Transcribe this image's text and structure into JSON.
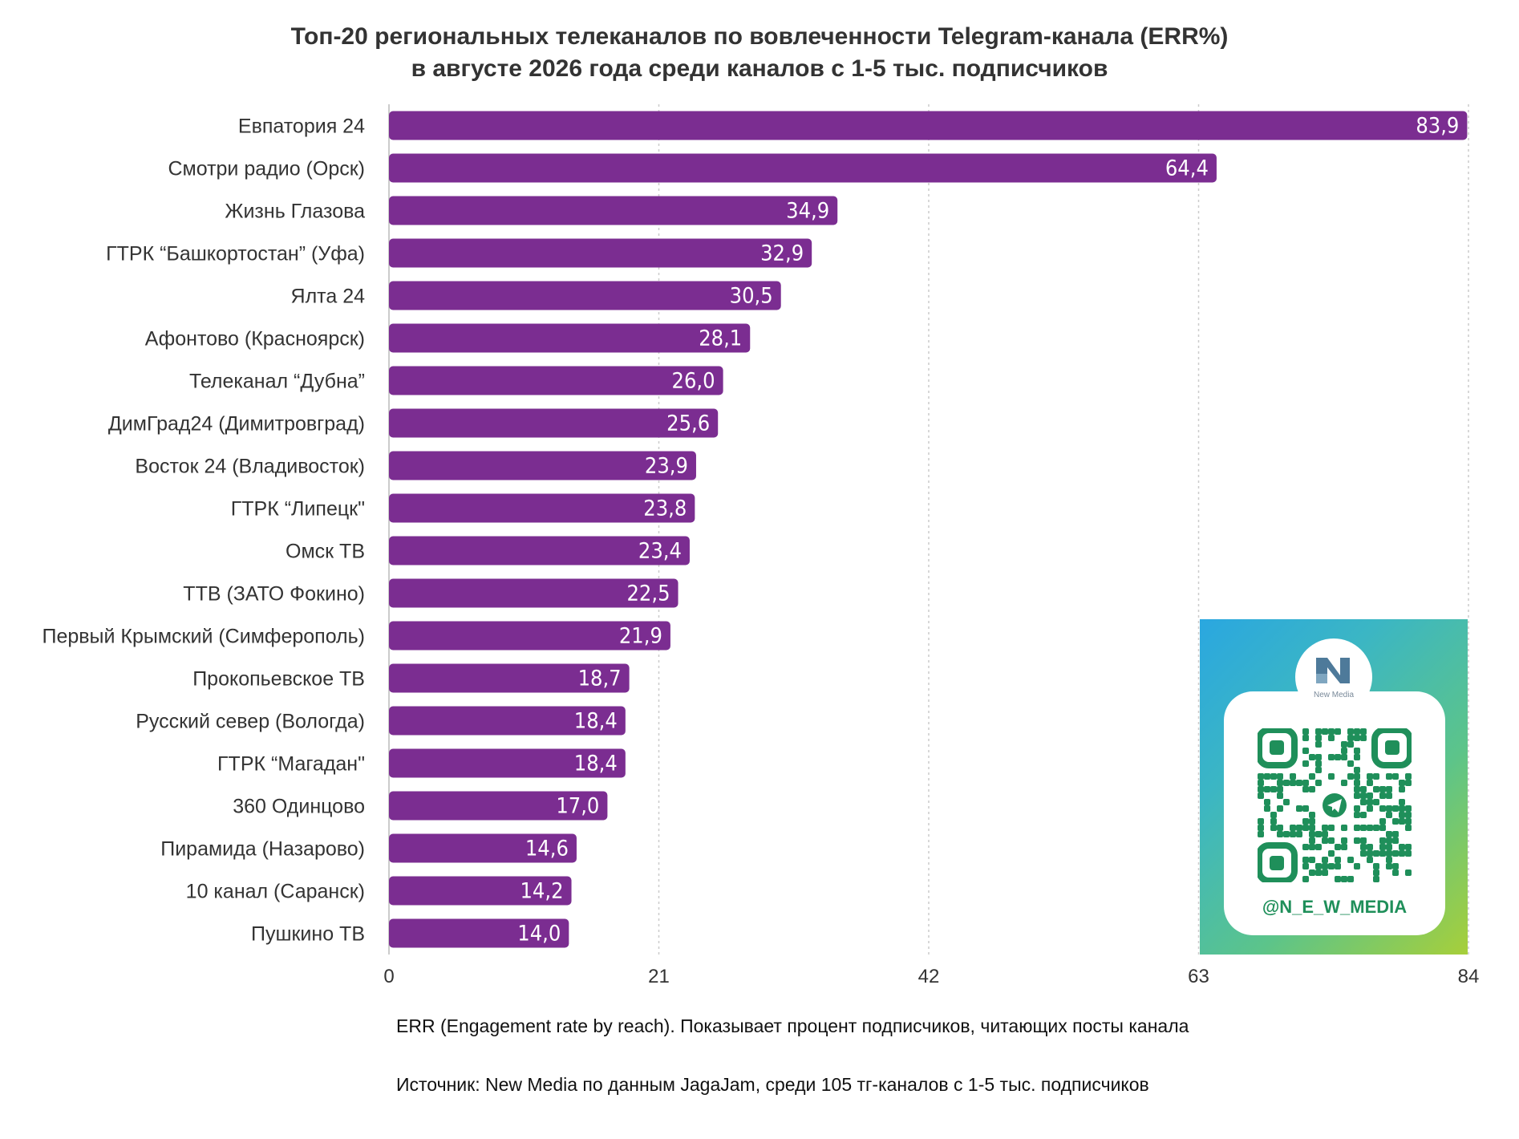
{
  "chart_data": {
    "type": "bar",
    "orientation": "horizontal",
    "title": "Топ-20 региональных телеканалов по вовлеченности Telegram-канала (ERR%)",
    "subtitle": "в августе 2026 года среди каналов с 1-5 тыс. подписчиков",
    "categories": [
      "Евпатория 24",
      "Смотри радио (Орск)",
      "Жизнь Глазова",
      "ГТРК “Башкортостан” (Уфа)",
      "Ялта 24",
      "Афонтово (Красноярск)",
      "Телеканал “Дубна”",
      "ДимГрад24 (Димитровград)",
      "Восток 24 (Владивосток)",
      "ГТРК “Липецк\"",
      "Омск ТВ",
      "ТТВ (ЗАТО Фокино)",
      "Первый Крымский (Симферополь)",
      "Прокопьевское ТВ",
      "Русский север (Вологда)",
      "ГТРК “Магадан\"",
      "360 Одинцово",
      "Пирамида (Назарово)",
      "10 канал (Саранск)",
      "Пушкино ТВ"
    ],
    "values": [
      83.9,
      64.4,
      34.9,
      32.9,
      30.5,
      28.1,
      26.0,
      25.6,
      23.9,
      23.8,
      23.4,
      22.5,
      21.9,
      18.7,
      18.4,
      18.4,
      17.0,
      14.6,
      14.2,
      14.0
    ],
    "value_labels": [
      "83,9",
      "64,4",
      "34,9",
      "32,9",
      "30,5",
      "28,1",
      "26,0",
      "25,6",
      "23,9",
      "23,8",
      "23,4",
      "22,5",
      "21,9",
      "18,7",
      "18,4",
      "18,4",
      "17,0",
      "14,6",
      "14,2",
      "14,0"
    ],
    "xlim": [
      0,
      84
    ],
    "xticks": [
      0,
      21,
      42,
      63,
      84
    ],
    "xtick_labels": [
      "0",
      "21",
      "42",
      "63",
      "84"
    ],
    "grid": true,
    "bar_color": "#7b2d91"
  },
  "notes": {
    "definition": "ERR (Engagement rate by reach). Показывает процент подписчиков, читающих посты канала",
    "source": "Источник: New Media по данным JagaJam, среди 105 тг-каналов с 1-5 тыс. подписчиков"
  },
  "qr_panel": {
    "logo_text": "New Media",
    "handle": "@N_E_W_MEDIA",
    "icon": "telegram-icon"
  }
}
